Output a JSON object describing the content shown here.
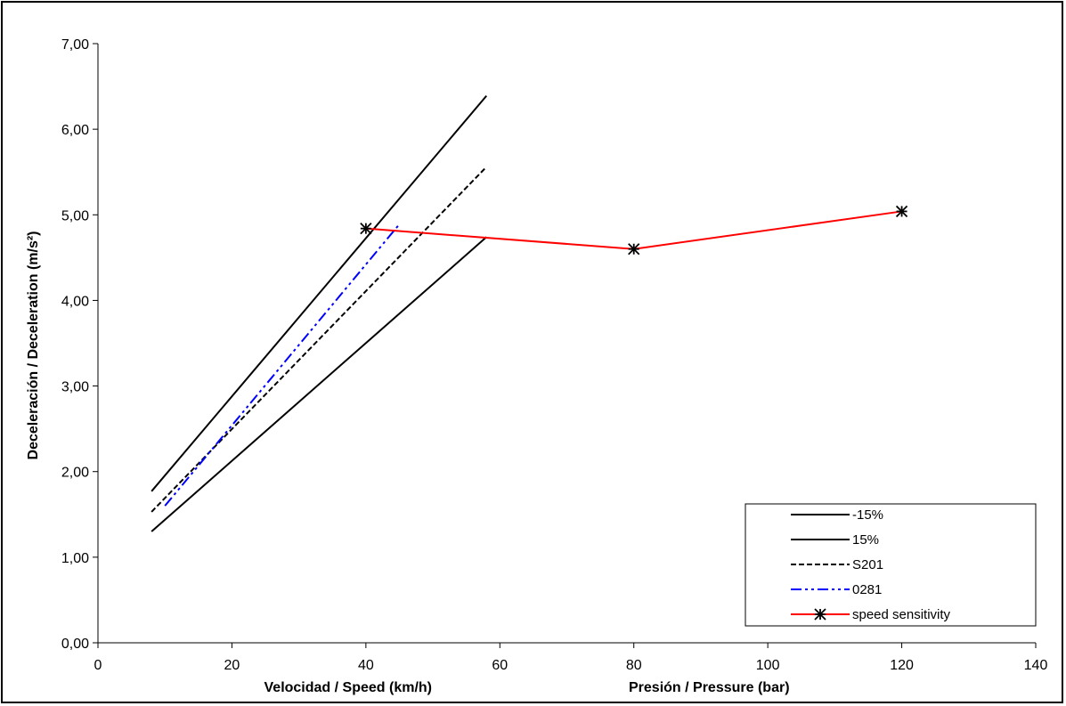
{
  "chart_data": {
    "type": "line",
    "title": "",
    "xlabel_left": "Velocidad / Speed  (km/h)",
    "xlabel_right": "Presión / Pressure (bar)",
    "ylabel": "Deceleración / Deceleration (m/s²)",
    "xlim": [
      0,
      140
    ],
    "ylim": [
      0,
      7
    ],
    "x_ticks": [
      0,
      20,
      40,
      60,
      80,
      100,
      120,
      140
    ],
    "x_tick_labels": [
      "0",
      "20",
      "40",
      "60",
      "80",
      "100",
      "120",
      "140"
    ],
    "y_ticks": [
      0,
      1,
      2,
      3,
      4,
      5,
      6,
      7
    ],
    "y_tick_labels": [
      "0,00",
      "1,00",
      "2,00",
      "3,00",
      "4,00",
      "5,00",
      "6,00",
      "7,00"
    ],
    "grid": false,
    "legend_position": "bottom-right",
    "series": [
      {
        "name": "-15%",
        "color": "#000000",
        "dash": "solid",
        "marker": "none",
        "x": [
          8,
          58
        ],
        "y": [
          1.77,
          6.39
        ]
      },
      {
        "name": "15%",
        "color": "#000000",
        "dash": "solid",
        "marker": "none",
        "x": [
          8,
          58
        ],
        "y": [
          1.3,
          4.74
        ]
      },
      {
        "name": "S201",
        "color": "#000000",
        "dash": "dashed",
        "marker": "none",
        "x": [
          8,
          58
        ],
        "y": [
          1.53,
          5.56
        ]
      },
      {
        "name": "0281",
        "color": "#0000ff",
        "dash": "dashdotdot",
        "marker": "none",
        "x": [
          10,
          45
        ],
        "y": [
          1.6,
          4.89
        ]
      },
      {
        "name": "speed sensitivity",
        "color": "#ff0000",
        "dash": "solid",
        "marker": "asterisk",
        "x": [
          40,
          80,
          120
        ],
        "y": [
          4.84,
          4.6,
          5.04
        ]
      }
    ]
  }
}
